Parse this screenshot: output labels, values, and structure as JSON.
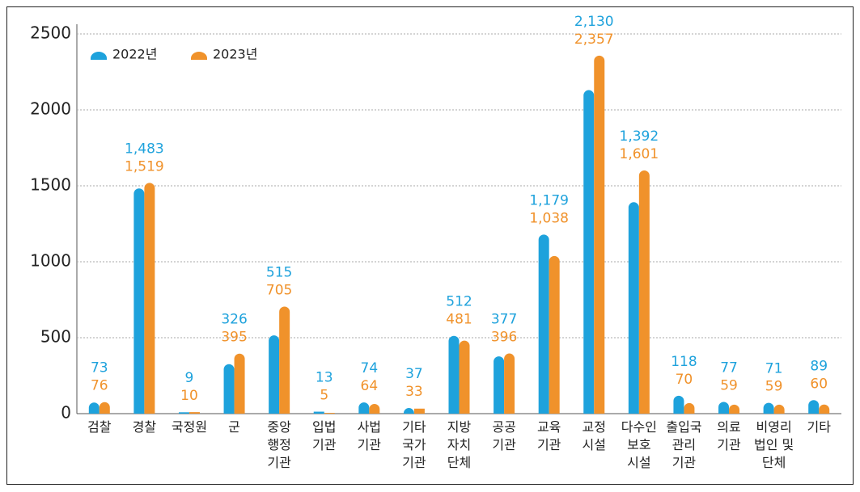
{
  "chart_data": {
    "type": "bar",
    "categories": [
      "검찰",
      "경찰",
      "국정원",
      "군",
      "중앙\n행정\n기관",
      "입법\n기관",
      "사법\n기관",
      "기타\n국가\n기관",
      "지방\n자치\n단체",
      "공공\n기관",
      "교육\n기관",
      "교정\n시설",
      "다수인\n보호\n시설",
      "출입국\n관리\n기관",
      "의료\n기관",
      "비영리\n법인 및\n단체",
      "기타"
    ],
    "series": [
      {
        "name": "2022년",
        "color": "#1ea2dc",
        "values": [
          73,
          1483,
          9,
          326,
          515,
          13,
          74,
          37,
          512,
          377,
          1179,
          2130,
          1392,
          118,
          77,
          71,
          89
        ],
        "value_labels": [
          "73",
          "1,483",
          "9",
          "326",
          "515",
          "13",
          "74",
          "37",
          "512",
          "377",
          "1,179",
          "2,130",
          "1,392",
          "118",
          "77",
          "71",
          "89"
        ]
      },
      {
        "name": "2023년",
        "color": "#f0922b",
        "values": [
          76,
          1519,
          10,
          395,
          705,
          5,
          64,
          33,
          481,
          396,
          1038,
          2357,
          1601,
          70,
          59,
          59,
          60
        ],
        "value_labels": [
          "76",
          "1,519",
          "10",
          "395",
          "705",
          "5",
          "64",
          "33",
          "481",
          "396",
          "1,038",
          "2,357",
          "1,601",
          "70",
          "59",
          "59",
          "60"
        ]
      }
    ],
    "ylim": [
      0,
      2500
    ],
    "yticks": [
      0,
      500,
      1000,
      1500,
      2000,
      2500
    ],
    "grid": true,
    "legend": "top-left"
  }
}
